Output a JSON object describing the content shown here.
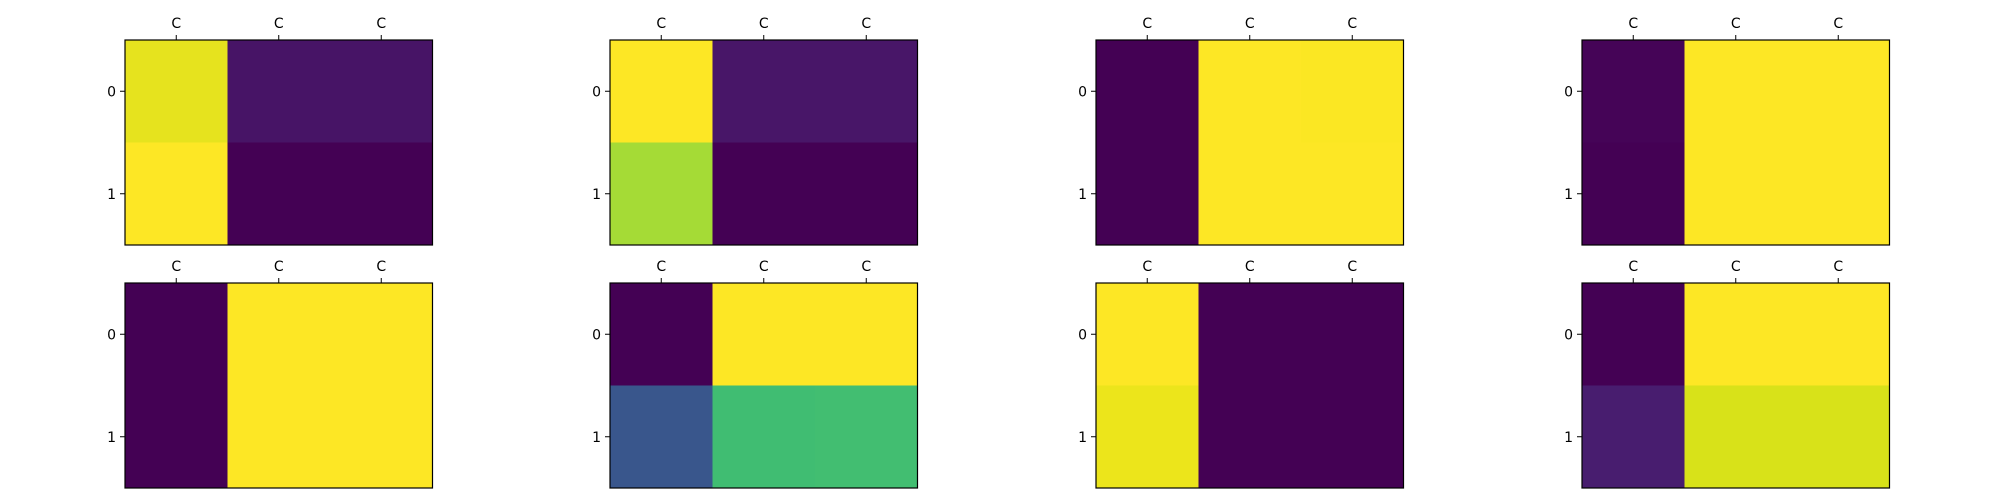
{
  "chart_data": [
    {
      "type": "heatmap",
      "xticklabels": [
        "C",
        "C",
        "C"
      ],
      "yticklabels": [
        "0",
        "1"
      ],
      "colormap": "viridis",
      "cell_colors": [
        [
          "#e6e31e",
          "#471466",
          "#471466"
        ],
        [
          "#fde725",
          "#440154",
          "#440154"
        ]
      ]
    },
    {
      "type": "heatmap",
      "xticklabels": [
        "C",
        "C",
        "C"
      ],
      "yticklabels": [
        "0",
        "1"
      ],
      "colormap": "viridis",
      "cell_colors": [
        [
          "#fde725",
          "#481668",
          "#481668"
        ],
        [
          "#a5db36",
          "#440154",
          "#440154"
        ]
      ]
    },
    {
      "type": "heatmap",
      "xticklabels": [
        "C",
        "C",
        "C"
      ],
      "yticklabels": [
        "0",
        "1"
      ],
      "colormap": "viridis",
      "cell_colors": [
        [
          "#440154",
          "#fde725",
          "#fbe723"
        ],
        [
          "#440154",
          "#fde725",
          "#fde725"
        ]
      ]
    },
    {
      "type": "heatmap",
      "xticklabels": [
        "C",
        "C",
        "C"
      ],
      "yticklabels": [
        "0",
        "1"
      ],
      "colormap": "viridis",
      "cell_colors": [
        [
          "#450457",
          "#fde725",
          "#fde725"
        ],
        [
          "#440154",
          "#fde725",
          "#fde725"
        ]
      ]
    },
    {
      "type": "heatmap",
      "xticklabels": [
        "C",
        "C",
        "C"
      ],
      "yticklabels": [
        "0",
        "1"
      ],
      "colormap": "viridis",
      "cell_colors": [
        [
          "#440154",
          "#fde725",
          "#fde725"
        ],
        [
          "#440154",
          "#fde725",
          "#fde725"
        ]
      ]
    },
    {
      "type": "heatmap",
      "xticklabels": [
        "C",
        "C",
        "C"
      ],
      "yticklabels": [
        "0",
        "1"
      ],
      "colormap": "viridis",
      "cell_colors": [
        [
          "#440154",
          "#fde725",
          "#fde725"
        ],
        [
          "#39568c",
          "#40bd72",
          "#42be71"
        ]
      ]
    },
    {
      "type": "heatmap",
      "xticklabels": [
        "C",
        "C",
        "C"
      ],
      "yticklabels": [
        "0",
        "1"
      ],
      "colormap": "viridis",
      "cell_colors": [
        [
          "#fde725",
          "#440154",
          "#440154"
        ],
        [
          "#ece51b",
          "#440154",
          "#440154"
        ]
      ]
    },
    {
      "type": "heatmap",
      "xticklabels": [
        "C",
        "C",
        "C"
      ],
      "yticklabels": [
        "0",
        "1"
      ],
      "colormap": "viridis",
      "cell_colors": [
        [
          "#440154",
          "#fde725",
          "#fde725"
        ],
        [
          "#481d6f",
          "#d8e219",
          "#d8e219"
        ]
      ]
    }
  ]
}
